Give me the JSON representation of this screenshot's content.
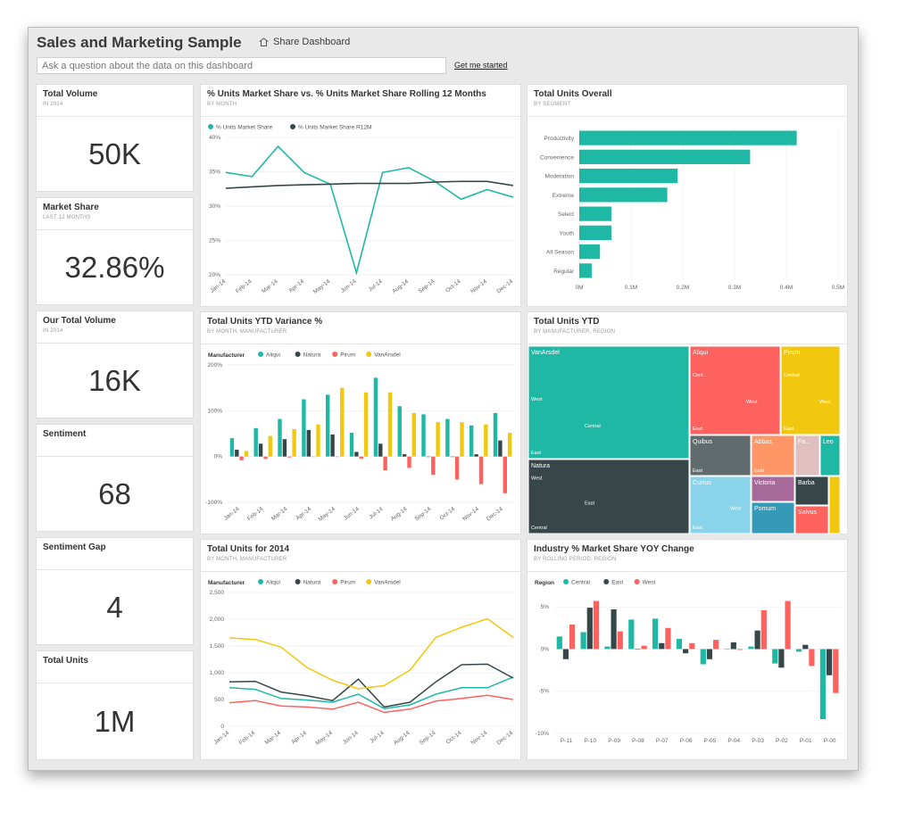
{
  "header": {
    "title": "Sales and Marketing Sample",
    "share_label": "Share Dashboard",
    "qa_placeholder": "Ask a question about the data on this dashboard",
    "get_started": "Get me started"
  },
  "kpis": [
    {
      "title": "Total Volume",
      "subtitle": "IN 2014",
      "value": "50K"
    },
    {
      "title": "Market Share",
      "subtitle": "LAST 12 MONTHS",
      "value": "32.86%"
    },
    {
      "title": "Our Total Volume",
      "subtitle": "IN 2014",
      "value": "16K"
    },
    {
      "title": "Sentiment",
      "subtitle": "",
      "value": "68"
    },
    {
      "title": "Sentiment Gap",
      "subtitle": "",
      "value": "4"
    },
    {
      "title": "Total Units",
      "subtitle": "",
      "value": "1M"
    }
  ],
  "tiles": {
    "share_line": {
      "title": "% Units Market Share vs. % Units Market Share Rolling 12 Months",
      "subtitle": "BY MONTH"
    },
    "units_overall": {
      "title": "Total Units Overall",
      "subtitle": "BY SEGMENT"
    },
    "ytd_variance": {
      "title": "Total Units YTD Variance %",
      "subtitle": "BY MONTH, MANUFACTURER"
    },
    "units_ytd": {
      "title": "Total Units YTD",
      "subtitle": "BY MANUFACTURER, REGION"
    },
    "units_2014": {
      "title": "Total Units for 2014",
      "subtitle": "BY MONTH, MANUFACTURER"
    },
    "industry_yoy": {
      "title": "Industry % Market Share YOY Change",
      "subtitle": "BY ROLLING PERIOD, REGION"
    }
  },
  "colors": {
    "teal": "#1fb8a5",
    "dark": "#374649",
    "red": "#fd625e",
    "yellow": "#f2c80f",
    "gray": "#5f6b6d",
    "orange": "#fe9666",
    "purple": "#a66999",
    "lightblue": "#8ad4eb",
    "blue": "#3599b8",
    "pink": "#dfbfbf"
  },
  "chart_data": [
    {
      "id": "share_line",
      "type": "line",
      "categories": [
        "Jan-14",
        "Feb-14",
        "Mar-14",
        "Apr-14",
        "May-14",
        "Jun-14",
        "Jul-14",
        "Aug-14",
        "Sep-14",
        "Oct-14",
        "Nov-14",
        "Dec-14"
      ],
      "series": [
        {
          "name": "% Units Market Share",
          "color": "#1fb8a5",
          "values": [
            34.9,
            34.3,
            38.7,
            34.9,
            33.2,
            20.3,
            34.9,
            35.6,
            33.6,
            31.0,
            32.4,
            31.3
          ]
        },
        {
          "name": "% Units Market Share R12M",
          "color": "#374649",
          "values": [
            32.6,
            32.8,
            33.0,
            33.1,
            33.2,
            33.3,
            33.3,
            33.3,
            33.5,
            33.6,
            33.6,
            33.0
          ]
        }
      ],
      "yticks": [
        "20%",
        "25%",
        "30%",
        "35%",
        "40%"
      ],
      "ylim": [
        20,
        40
      ]
    },
    {
      "id": "units_overall",
      "type": "bar",
      "orientation": "horizontal",
      "categories": [
        "Productivity",
        "Convenience",
        "Moderation",
        "Extreme",
        "Select",
        "Youth",
        "All Season",
        "Regular"
      ],
      "values": [
        0.42,
        0.33,
        0.19,
        0.17,
        0.062,
        0.062,
        0.04,
        0.024
      ],
      "xticks": [
        "0M",
        "0.1M",
        "0.2M",
        "0.3M",
        "0.4M",
        "0.5M"
      ],
      "xlim": [
        0,
        0.5
      ],
      "color": "#1fb8a5"
    },
    {
      "id": "ytd_variance",
      "type": "bar",
      "legend_title": "Manufacturer",
      "categories": [
        "Jan-14",
        "Feb-14",
        "Mar-14",
        "Apr-14",
        "May-14",
        "Jun-14",
        "Jul-14",
        "Aug-14",
        "Sep-14",
        "Oct-14",
        "Nov-14",
        "Dec-14"
      ],
      "series": [
        {
          "name": "Aliqui",
          "color": "#1fb8a5",
          "values": [
            40,
            62,
            82,
            125,
            135,
            52,
            172,
            110,
            92,
            82,
            68,
            95
          ]
        },
        {
          "name": "Natura",
          "color": "#374649",
          "values": [
            15,
            28,
            38,
            58,
            48,
            10,
            28,
            5,
            0,
            0,
            5,
            35
          ]
        },
        {
          "name": "Pirum",
          "color": "#fd625e",
          "values": [
            -8,
            -5,
            -2,
            0,
            0,
            -5,
            -30,
            -25,
            -40,
            -50,
            -60,
            -80
          ]
        },
        {
          "name": "VanArsdel",
          "color": "#f2c80f",
          "values": [
            12,
            45,
            60,
            70,
            150,
            140,
            140,
            95,
            75,
            75,
            70,
            52
          ]
        }
      ],
      "yticks": [
        "-100%",
        "0%",
        "100%",
        "200%"
      ],
      "ylim": [
        -100,
        200
      ]
    },
    {
      "id": "units_ytd",
      "type": "treemap",
      "items": [
        {
          "label": "VanArsdel",
          "sub": [
            "East",
            "Central",
            "West"
          ],
          "color": "#1fb8a5"
        },
        {
          "label": "Natura",
          "sub": [
            "Central",
            "East",
            "West"
          ],
          "color": "#374649"
        },
        {
          "label": "Aliqui",
          "sub": [
            "East",
            "West",
            "Cent..."
          ],
          "color": "#fd625e"
        },
        {
          "label": "Pirum",
          "sub": [
            "East",
            "West",
            "Central"
          ],
          "color": "#f2c80f"
        },
        {
          "label": "Quibus",
          "sub": [
            "East"
          ],
          "color": "#5f6b6d"
        },
        {
          "label": "Abbas",
          "sub": [
            "East"
          ],
          "color": "#fe9666"
        },
        {
          "label": "Fa...",
          "sub": [],
          "color": "#dfbfbf"
        },
        {
          "label": "Leo",
          "sub": [],
          "color": "#1fb8a5"
        },
        {
          "label": "Currus",
          "sub": [
            "East",
            "West"
          ],
          "color": "#8ad4eb"
        },
        {
          "label": "Victoria",
          "sub": [],
          "color": "#a66999"
        },
        {
          "label": "Barba",
          "sub": [],
          "color": "#374649"
        },
        {
          "label": "Pomum",
          "sub": [],
          "color": "#3599b8"
        },
        {
          "label": "Salvus",
          "sub": [],
          "color": "#fd625e"
        }
      ]
    },
    {
      "id": "units_2014",
      "type": "line",
      "legend_title": "Manufacturer",
      "categories": [
        "Jan-14",
        "Feb-14",
        "Mar-14",
        "Apr-14",
        "May-14",
        "Jun-14",
        "Jul-14",
        "Aug-14",
        "Sep-14",
        "Oct-14",
        "Nov-14",
        "Dec-14"
      ],
      "series": [
        {
          "name": "Aliqui",
          "color": "#1fb8a5",
          "values": [
            720,
            690,
            520,
            490,
            450,
            600,
            330,
            400,
            600,
            720,
            720,
            920
          ]
        },
        {
          "name": "Natura",
          "color": "#374649",
          "values": [
            830,
            840,
            640,
            570,
            480,
            880,
            360,
            450,
            830,
            1150,
            1160,
            900
          ]
        },
        {
          "name": "Pirum",
          "color": "#fd625e",
          "values": [
            440,
            480,
            380,
            360,
            320,
            450,
            260,
            320,
            470,
            520,
            580,
            500
          ]
        },
        {
          "name": "VanArsdel",
          "color": "#f2c80f",
          "values": [
            1650,
            1620,
            1480,
            1100,
            860,
            700,
            760,
            1050,
            1660,
            1850,
            2010,
            1660
          ]
        }
      ],
      "yticks": [
        "0",
        "500",
        "1,000",
        "1,500",
        "2,000",
        "2,500"
      ],
      "ylim": [
        0,
        2500
      ]
    },
    {
      "id": "industry_yoy",
      "type": "bar",
      "legend_title": "Region",
      "categories": [
        "P-11",
        "P-10",
        "P-09",
        "P-08",
        "P-07",
        "P-06",
        "P-05",
        "P-04",
        "P-03",
        "P-02",
        "P-01",
        "P-00"
      ],
      "series": [
        {
          "name": "Central",
          "color": "#1fb8a5",
          "values": [
            1.5,
            2.0,
            0.3,
            3.5,
            3.6,
            1.2,
            -1.8,
            0.0,
            0.3,
            -1.7,
            -0.3,
            -8.3
          ]
        },
        {
          "name": "East",
          "color": "#374649",
          "values": [
            -1.2,
            4.9,
            4.7,
            0.0,
            0.7,
            -0.5,
            -1.2,
            0.8,
            2.2,
            -2.2,
            0.5,
            -3.1
          ]
        },
        {
          "name": "West",
          "color": "#fd625e",
          "values": [
            2.9,
            5.7,
            2.1,
            0.4,
            2.5,
            0.7,
            1.1,
            -0.1,
            4.6,
            5.7,
            -2.0,
            -5.2
          ]
        }
      ],
      "yticks": [
        "-10%",
        "-5%",
        "0%",
        "5%"
      ],
      "ylim": [
        -10,
        6.5
      ]
    }
  ]
}
